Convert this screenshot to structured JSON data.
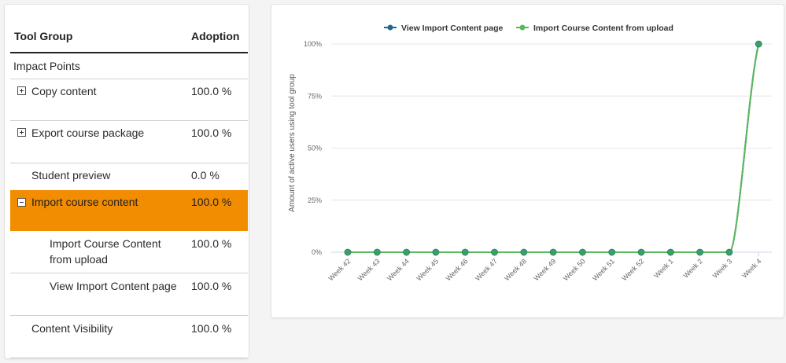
{
  "table": {
    "headers": {
      "tool_group": "Tool Group",
      "adoption": "Adoption"
    },
    "group_label": "Impact Points",
    "rows": [
      {
        "label": "Copy content",
        "adoption": "100.0 %",
        "expander": "plus"
      },
      {
        "label": "Export course package",
        "adoption": "100.0 %",
        "expander": "plus"
      },
      {
        "label": "Student preview",
        "adoption": "0.0 %",
        "expander": "none"
      },
      {
        "label": "Import course content",
        "adoption": "100.0 %",
        "expander": "minus",
        "selected": true
      },
      {
        "label_line1": "Import Course Content",
        "label_line2": "from upload",
        "adoption": "100.0 %",
        "child": true
      },
      {
        "label": "View Import Content page",
        "adoption": "100.0 %",
        "child": true
      },
      {
        "label": "Content Visibility",
        "adoption": "100.0 %",
        "expander": "none"
      }
    ],
    "selected_color": "#f28c00"
  },
  "chart_data": {
    "type": "line",
    "categories": [
      "Week 42",
      "Week 43",
      "Week 44",
      "Week 45",
      "Week 46",
      "Week 47",
      "Week 48",
      "Week 49",
      "Week 50",
      "Week 51",
      "Week 52",
      "Week 1",
      "Week 2",
      "Week 3",
      "Week 4"
    ],
    "series": [
      {
        "name": "View Import Content page",
        "color": "#1f6b8e",
        "values": [
          0,
          0,
          0,
          0,
          0,
          0,
          0,
          0,
          0,
          0,
          0,
          0,
          0,
          0,
          100
        ]
      },
      {
        "name": "Import Course Content from upload",
        "color": "#5cb85c",
        "values": [
          0,
          0,
          0,
          0,
          0,
          0,
          0,
          0,
          0,
          0,
          0,
          0,
          0,
          0,
          100
        ]
      }
    ],
    "y_ticks": [
      "0%",
      "25%",
      "50%",
      "75%",
      "100%"
    ],
    "ylabel": "Amount of active users using tool group",
    "xlabel": "",
    "ylim": [
      0,
      100
    ],
    "grid": true,
    "legend": "top-center",
    "point_fill": "#3a9e6e"
  }
}
